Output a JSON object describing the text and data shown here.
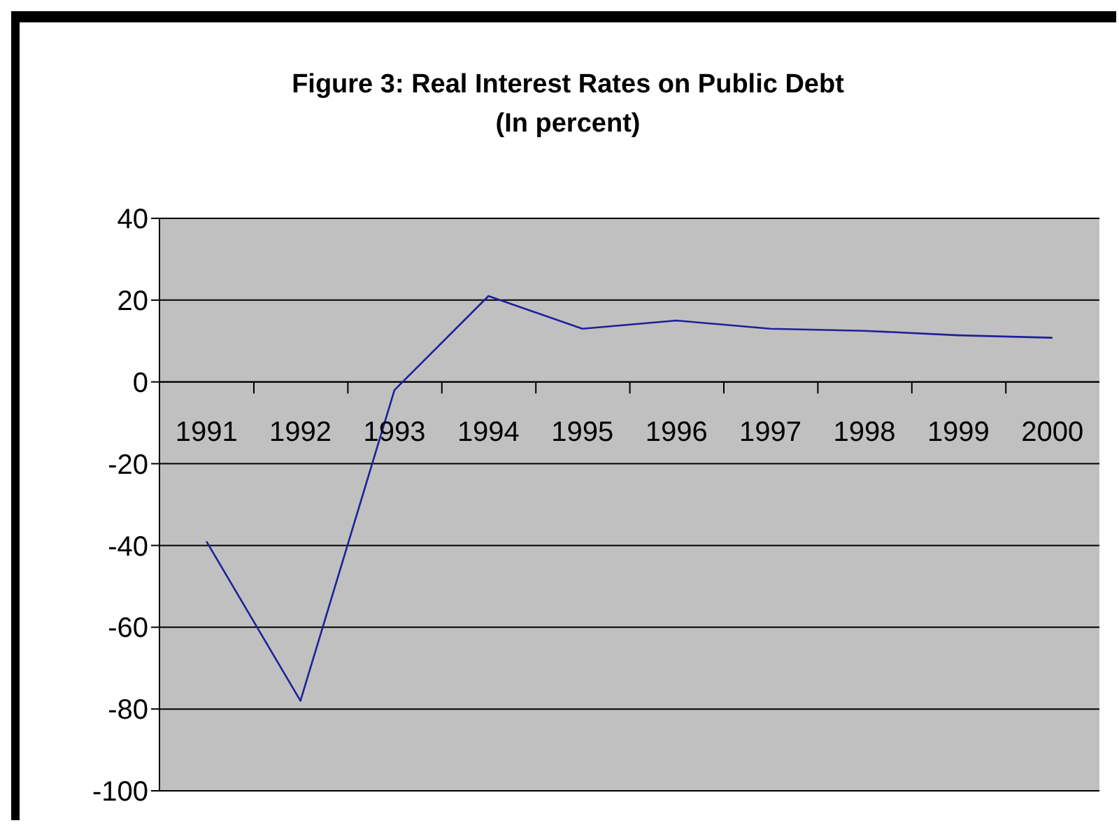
{
  "chart_data": {
    "type": "line",
    "title": "Figure 3: Real Interest Rates on Public Debt",
    "subtitle": "(In percent)",
    "categories": [
      "1991",
      "1992",
      "1993",
      "1994",
      "1995",
      "1996",
      "1997",
      "1998",
      "1999",
      "2000"
    ],
    "series": [
      {
        "color": "#1f1f9a",
        "values": [
          -39,
          -78,
          -2,
          21,
          13,
          15,
          13,
          12.5,
          11.4,
          10.8
        ]
      }
    ],
    "ylim": [
      -100,
      40
    ],
    "yticks": [
      -100,
      -80,
      -60,
      -40,
      -20,
      0,
      20,
      40
    ],
    "grid": "y",
    "marker": "none",
    "line_style": "solid"
  }
}
